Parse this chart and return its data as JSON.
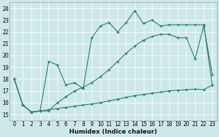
{
  "xlabel": "Humidex (Indice chaleur)",
  "xlim": [
    -0.5,
    23.5
  ],
  "ylim": [
    14.5,
    24.5
  ],
  "xticks": [
    0,
    1,
    2,
    3,
    4,
    5,
    6,
    7,
    8,
    9,
    10,
    11,
    12,
    13,
    14,
    15,
    16,
    17,
    18,
    19,
    20,
    21,
    22,
    23
  ],
  "yticks": [
    15,
    16,
    17,
    18,
    19,
    20,
    21,
    22,
    23,
    24
  ],
  "background_color": "#cde8e8",
  "grid_color": "#b8d8d8",
  "line_color": "#1a7a6e",
  "line1_x": [
    0,
    1,
    2,
    3,
    4,
    5,
    6,
    7,
    8,
    9,
    10,
    11,
    12,
    13,
    14,
    15,
    16,
    17,
    18,
    19,
    20,
    21,
    22,
    23
  ],
  "line1_y": [
    18,
    15.8,
    15.2,
    15.3,
    15.4,
    15.5,
    15.6,
    15.7,
    15.8,
    15.9,
    16.0,
    16.15,
    16.3,
    16.45,
    16.6,
    16.7,
    16.8,
    16.9,
    17.0,
    17.05,
    17.1,
    17.15,
    17.1,
    17.5
  ],
  "line2_x": [
    0,
    1,
    2,
    3,
    4,
    5,
    6,
    7,
    8,
    9,
    10,
    11,
    12,
    13,
    14,
    15,
    16,
    17,
    18,
    19,
    20,
    21,
    22,
    23
  ],
  "line2_y": [
    18,
    15.8,
    15.2,
    15.3,
    19.5,
    19.2,
    17.5,
    17.7,
    17.2,
    21.5,
    22.5,
    22.8,
    22.0,
    22.8,
    23.8,
    22.7,
    23.0,
    22.5,
    22.6,
    22.6,
    22.6,
    22.6,
    22.6,
    17.5
  ],
  "line3_x": [
    0,
    1,
    2,
    3,
    4,
    5,
    6,
    7,
    8,
    9,
    10,
    11,
    12,
    13,
    14,
    15,
    16,
    17,
    18,
    19,
    20,
    21,
    22,
    23
  ],
  "line3_y": [
    18,
    15.8,
    15.2,
    15.3,
    15.3,
    16.0,
    16.5,
    17.0,
    17.3,
    17.7,
    18.2,
    18.8,
    19.5,
    20.2,
    20.8,
    21.3,
    21.6,
    21.8,
    21.8,
    21.5,
    21.5,
    19.7,
    22.5,
    18.4
  ]
}
